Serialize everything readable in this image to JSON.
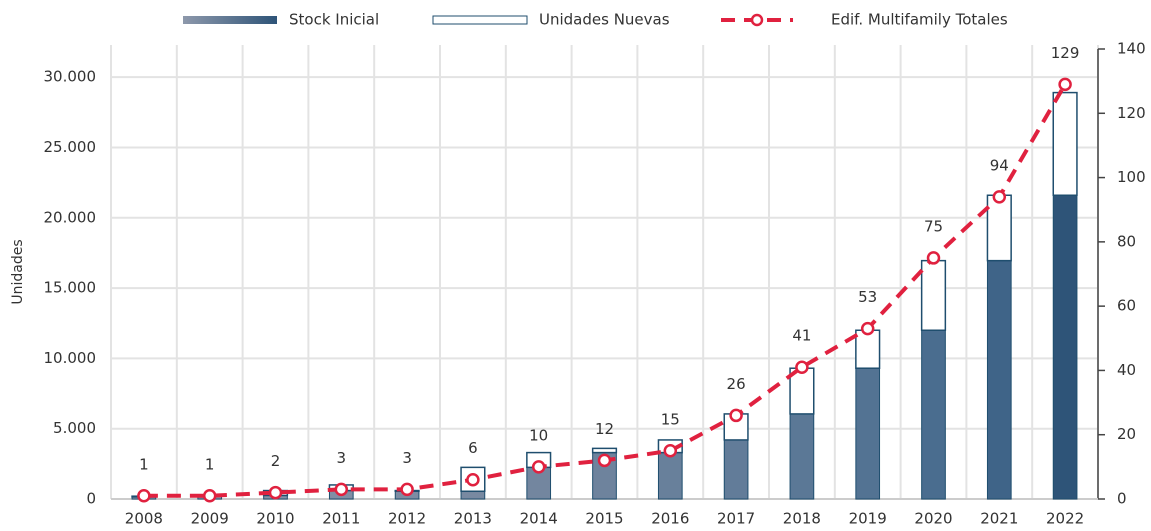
{
  "chart_data": {
    "type": "bar_line",
    "y_label": "Unidades",
    "categories": [
      "2008",
      "2009",
      "2010",
      "2011",
      "2012",
      "2013",
      "2014",
      "2015",
      "2016",
      "2017",
      "2018",
      "2019",
      "2020",
      "2021",
      "2022"
    ],
    "series": [
      {
        "name": "Stock Inicial",
        "color": "#2e5478",
        "colors": [
          "#8d98ab",
          "#8995a9",
          "#8592a7",
          "#818fa5",
          "#7d8ca3",
          "#7889a1",
          "#73869f",
          "#6e839d",
          "#68809b",
          "#627c99",
          "#5b7896",
          "#537393",
          "#4a6d8f",
          "#3f6488",
          "#2e5478"
        ],
        "values": [
          150,
          200,
          250,
          600,
          550,
          550,
          2250,
          3300,
          3300,
          4200,
          6050,
          9300,
          12000,
          16950,
          21600
        ]
      },
      {
        "name": "Unidades Nuevas",
        "color": "#ffffff",
        "stroke": "#1f4e6e",
        "values": [
          50,
          50,
          350,
          400,
          50,
          1700,
          1050,
          300,
          900,
          1850,
          3250,
          2700,
          4950,
          4650,
          7300
        ]
      },
      {
        "name": "Edif. Multifamily Totales",
        "color": "#e0213f",
        "axis": "y2",
        "values": [
          1,
          1,
          2,
          3,
          3,
          6,
          10,
          12,
          15,
          26,
          41,
          53,
          75,
          94,
          129
        ]
      }
    ],
    "ylim": [
      0,
      32000
    ],
    "yticks": [
      {
        "value": 0,
        "label": "0"
      },
      {
        "value": 5000,
        "label": "5.000"
      },
      {
        "value": 10000,
        "label": "10.000"
      },
      {
        "value": 15000,
        "label": "15.000"
      },
      {
        "value": 20000,
        "label": "20.000"
      },
      {
        "value": 25000,
        "label": "25.000"
      },
      {
        "value": 30000,
        "label": "30.000"
      }
    ],
    "y2lim": [
      0,
      140
    ],
    "y2ticks": [
      0,
      20,
      40,
      60,
      80,
      100,
      120,
      140
    ],
    "grid": true
  }
}
